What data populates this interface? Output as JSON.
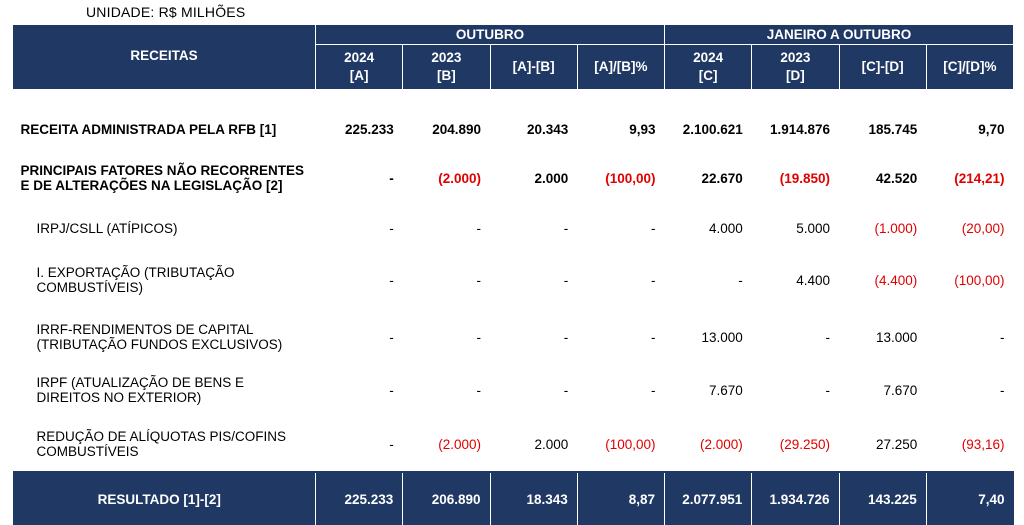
{
  "unit": "UNIDADE: R$ MILHÕES",
  "header": {
    "receitas": "RECEITAS",
    "group_outubro": "OUTUBRO",
    "group_jan_out": "JANEIRO A OUTUBRO",
    "cols": [
      {
        "l1": "2024",
        "l2": "[A]"
      },
      {
        "l1": "2023",
        "l2": "[B]"
      },
      {
        "l1": "[A]-[B]",
        "l2": ""
      },
      {
        "l1": "[A]/[B]%",
        "l2": ""
      },
      {
        "l1": "2024",
        "l2": "[C]"
      },
      {
        "l1": "2023",
        "l2": "[D]"
      },
      {
        "l1": "[C]-[D]",
        "l2": ""
      },
      {
        "l1": "[C]/[D]%",
        "l2": ""
      }
    ]
  },
  "rows": [
    {
      "label": [
        "RECEITA ADMINISTRADA PELA RFB [1]"
      ],
      "values": [
        "225.233",
        "204.890",
        "20.343",
        "9,93",
        "2.100.621",
        "1.914.876",
        "185.745",
        "9,70"
      ]
    },
    {
      "label": [
        "PRINCIPAIS FATORES NÃO RECORRENTES",
        "E DE ALTERAÇÕES NA LEGISLAÇÃO [2]"
      ],
      "values": [
        "-",
        "(2.000)",
        "2.000",
        "(100,00)",
        "22.670",
        "(19.850)",
        "42.520",
        "(214,21)"
      ]
    },
    {
      "label": [
        "IRPJ/CSLL (ATÍPICOS)"
      ],
      "values": [
        "-",
        "-",
        "-",
        "-",
        "4.000",
        "5.000",
        "(1.000)",
        "(20,00)"
      ]
    },
    {
      "label": [
        "I. EXPORTAÇÃO (TRIBUTAÇÃO",
        "COMBUSTÍVEIS)"
      ],
      "values": [
        "-",
        "-",
        "-",
        "-",
        "-",
        "4.400",
        "(4.400)",
        "(100,00)"
      ]
    },
    {
      "label": [
        "IRRF-RENDIMENTOS DE CAPITAL",
        "(TRIBUTAÇÃO FUNDOS EXCLUSIVOS)"
      ],
      "values": [
        "-",
        "-",
        "-",
        "-",
        "13.000",
        "-",
        "13.000",
        "-"
      ]
    },
    {
      "label": [
        "IRPF (ATUALIZAÇÃO DE BENS E",
        "DIREITOS NO EXTERIOR)"
      ],
      "values": [
        "-",
        "-",
        "-",
        "-",
        "7.670",
        "-",
        "7.670",
        "-"
      ]
    },
    {
      "label": [
        "REDUÇÃO DE ALÍQUOTAS PIS/COFINS",
        "COMBUSTÍVEIS"
      ],
      "values": [
        "-",
        "(2.000)",
        "2.000",
        "(100,00)",
        "(2.000)",
        "(29.250)",
        "27.250",
        "(93,16)"
      ]
    }
  ],
  "total": {
    "label": "RESULTADO [1]-[2]",
    "values": [
      "225.233",
      "206.890",
      "18.343",
      "8,87",
      "2.077.951",
      "1.934.726",
      "143.225",
      "7,40"
    ]
  },
  "colors": {
    "header_bg": "#1f3864",
    "negative": "#e00000"
  }
}
